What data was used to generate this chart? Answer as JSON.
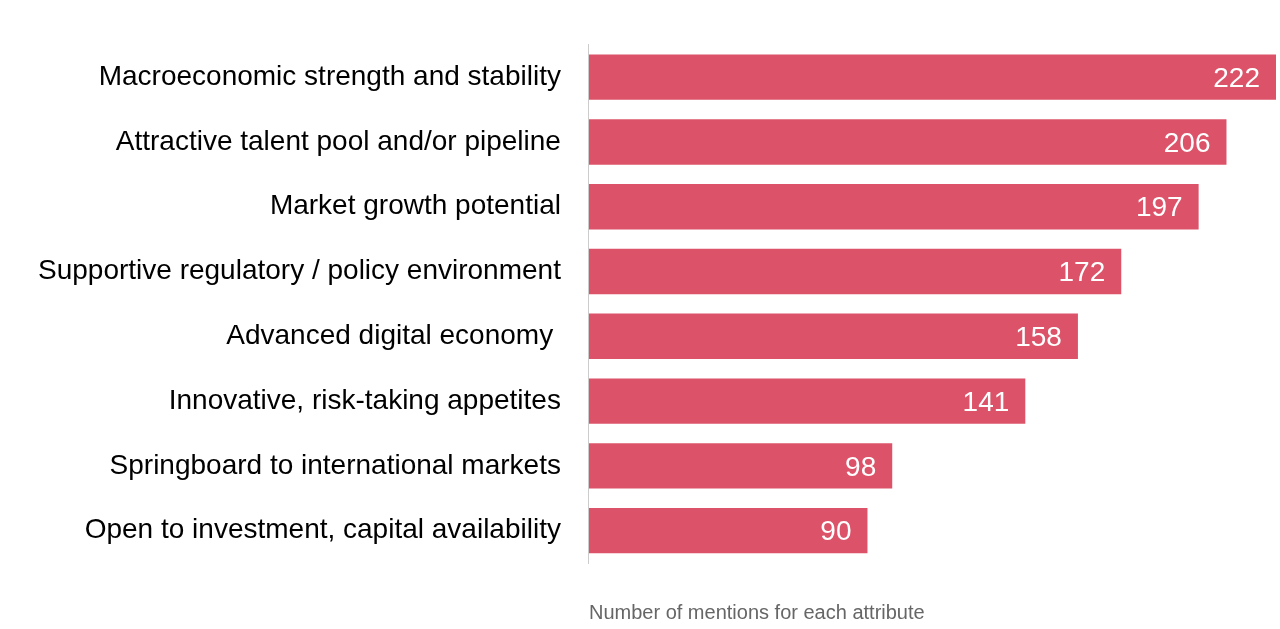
{
  "chart_data": {
    "type": "bar",
    "orientation": "horizontal",
    "xlabel": "Number of mentions for each attribute",
    "categories": [
      "Macroeconomic strength and stability",
      "Attractive talent pool and/or pipeline",
      "Market growth potential",
      "Supportive regulatory / policy environment",
      "Advanced digital economy ",
      "Innovative, risk-taking appetites",
      "Springboard to international markets",
      "Open to investment, capital availability"
    ],
    "values": [
      222,
      206,
      197,
      172,
      158,
      141,
      98,
      90
    ],
    "color": "#dc5369",
    "data_labels": true
  }
}
